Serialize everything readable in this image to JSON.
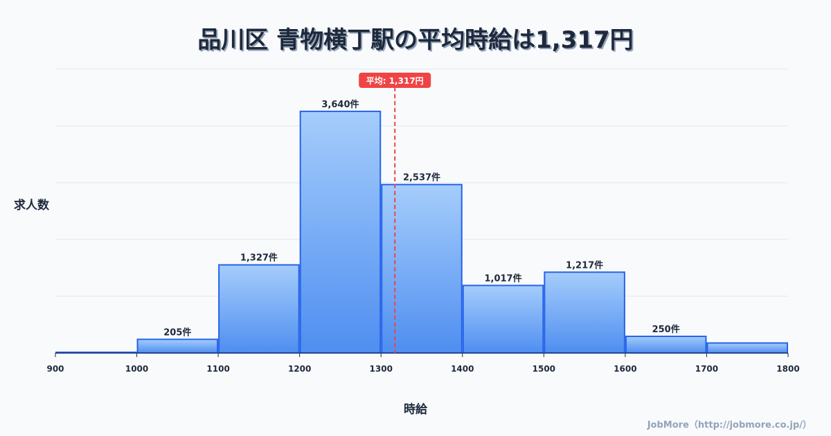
{
  "title": "品川区 青物横丁駅の平均時給は1,317円",
  "credit": "JobMore（http://jobmore.co.jp/）",
  "chart_data": {
    "type": "bar",
    "title": "品川区 青物横丁駅の平均時給は1,317円",
    "xlabel": "時給",
    "ylabel": "求人数",
    "bins": [
      [
        900,
        1000
      ],
      [
        1000,
        1100
      ],
      [
        1100,
        1200
      ],
      [
        1200,
        1300
      ],
      [
        1300,
        1400
      ],
      [
        1400,
        1500
      ],
      [
        1500,
        1600
      ],
      [
        1600,
        1700
      ],
      [
        1700,
        1800
      ]
    ],
    "values": [
      10,
      205,
      1327,
      3640,
      2537,
      1017,
      1217,
      250,
      150
    ],
    "data_labels": [
      "",
      "205件",
      "1,327件",
      "3,640件",
      "2,537件",
      "1,017件",
      "1,217件",
      "250件",
      ""
    ],
    "x_ticks": [
      "900",
      "1000",
      "1100",
      "1200",
      "1300",
      "1400",
      "1500",
      "1600",
      "1700",
      "1800"
    ],
    "xlim": [
      900,
      1800
    ],
    "ylim": [
      0,
      4275
    ],
    "grid": true,
    "mean": 1317,
    "mean_label": "平均: 1,317円",
    "colors": {
      "bar_top": "#a5cdfb",
      "bar_bottom": "#4f8ef0",
      "bar_stroke": "#2563eb",
      "mean": "#ef4444"
    }
  }
}
